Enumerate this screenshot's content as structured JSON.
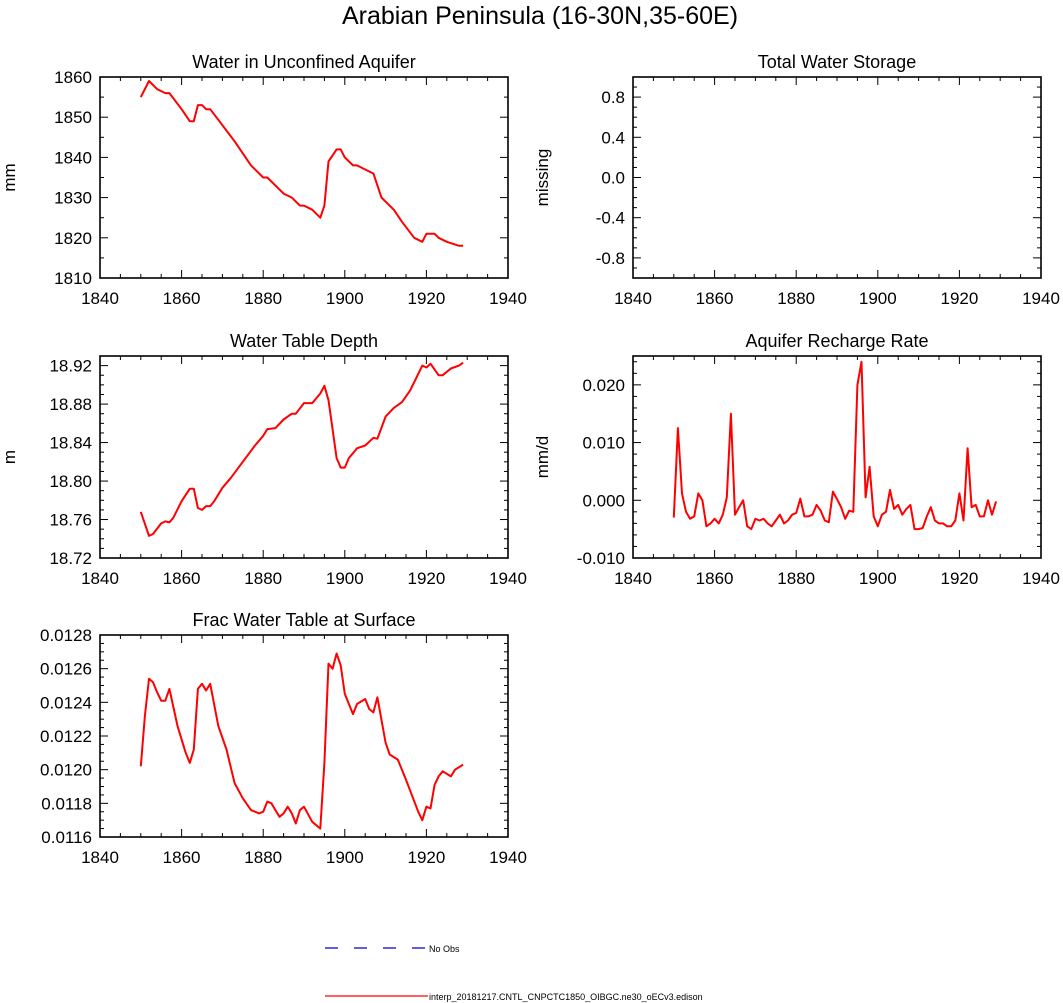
{
  "figure_title": "Arabian Peninsula (16-30N,35-60E)",
  "legend": {
    "entries": [
      {
        "label": "No Obs",
        "style": "dashed",
        "color": "#0000cc"
      },
      {
        "label": "interp_20181217.CNTL_CNPCTC1850_OIBGC.ne30_oECv3.edison",
        "style": "solid",
        "color": "#ff0000"
      }
    ]
  },
  "line_color": "#ff0000",
  "chart_data": [
    {
      "id": "water-unconfined-aquifer",
      "type": "line",
      "title": "Water in Unconfined Aquifer",
      "ylabel": "mm",
      "xlim": [
        1840,
        1940
      ],
      "ylim": [
        1810,
        1860
      ],
      "xticks": [
        1840,
        1860,
        1880,
        1900,
        1920,
        1940
      ],
      "yticks": [
        1810,
        1820,
        1830,
        1840,
        1850,
        1860
      ],
      "ytick_labels": [
        "1810",
        "1820",
        "1830",
        "1840",
        "1850",
        "1860"
      ],
      "ytick_minor": 2,
      "x": [
        1850,
        1852,
        1854,
        1856,
        1857,
        1860,
        1862,
        1863,
        1864,
        1865,
        1866,
        1867,
        1870,
        1873,
        1877,
        1880,
        1881,
        1885,
        1887,
        1889,
        1890,
        1892,
        1894,
        1895,
        1896,
        1898,
        1899,
        1900,
        1902,
        1903,
        1905,
        1907,
        1909,
        1912,
        1914,
        1917,
        1919,
        1920,
        1922,
        1923,
        1925,
        1928,
        1929
      ],
      "y": [
        1855,
        1859,
        1857,
        1856,
        1856,
        1852,
        1849,
        1849,
        1853,
        1853,
        1852,
        1852,
        1848,
        1844,
        1838,
        1835,
        1835,
        1831,
        1830,
        1828,
        1828,
        1827,
        1825,
        1828,
        1839,
        1842,
        1842,
        1840,
        1838,
        1838,
        1837,
        1836,
        1830,
        1827,
        1824,
        1820,
        1819,
        1821,
        1821,
        1820,
        1819,
        1818,
        1818
      ]
    },
    {
      "id": "total-water-storage",
      "type": "line",
      "title": "Total Water Storage",
      "ylabel": "missing",
      "xlim": [
        1840,
        1940
      ],
      "ylim": [
        -1,
        1
      ],
      "xticks": [
        1840,
        1860,
        1880,
        1900,
        1920,
        1940
      ],
      "yticks": [
        -0.8,
        -0.4,
        0.0,
        0.4,
        0.8
      ],
      "ytick_labels": [
        "-0.8",
        "-0.4",
        "0.0",
        "0.4",
        "0.8"
      ],
      "ytick_minor": 4,
      "x": [],
      "y": []
    },
    {
      "id": "water-table-depth",
      "type": "line",
      "title": "Water Table Depth",
      "ylabel": "m",
      "xlim": [
        1840,
        1940
      ],
      "ylim": [
        18.72,
        18.93
      ],
      "xticks": [
        1840,
        1860,
        1880,
        1900,
        1920,
        1940
      ],
      "yticks": [
        18.72,
        18.76,
        18.8,
        18.84,
        18.88,
        18.92
      ],
      "ytick_labels": [
        "18.72",
        "18.76",
        "18.80",
        "18.84",
        "18.88",
        "18.92"
      ],
      "ytick_minor": 4,
      "x": [
        1850,
        1852,
        1853,
        1855,
        1856,
        1857,
        1858,
        1860,
        1862,
        1863,
        1864,
        1865,
        1866,
        1867,
        1868,
        1870,
        1872,
        1875,
        1878,
        1880,
        1881,
        1883,
        1885,
        1887,
        1888,
        1890,
        1892,
        1894,
        1895,
        1896,
        1898,
        1899,
        1900,
        1901,
        1902,
        1903,
        1905,
        1907,
        1908,
        1910,
        1912,
        1914,
        1916,
        1919,
        1920,
        1921,
        1923,
        1924,
        1926,
        1928,
        1929
      ],
      "y": [
        18.768,
        18.743,
        18.745,
        18.756,
        18.758,
        18.757,
        18.762,
        18.779,
        18.792,
        18.792,
        18.772,
        18.77,
        18.774,
        18.774,
        18.779,
        18.793,
        18.803,
        18.82,
        18.837,
        18.847,
        18.854,
        18.855,
        18.864,
        18.87,
        18.87,
        18.881,
        18.881,
        18.891,
        18.899,
        18.884,
        18.824,
        18.814,
        18.814,
        18.824,
        18.829,
        18.834,
        18.837,
        18.845,
        18.844,
        18.867,
        18.876,
        18.882,
        18.894,
        18.92,
        18.918,
        18.922,
        18.91,
        18.91,
        18.917,
        18.92,
        18.923
      ]
    },
    {
      "id": "aquifer-recharge-rate",
      "type": "line",
      "title": "Aquifer Recharge Rate",
      "ylabel": "mm/d",
      "xlim": [
        1840,
        1940
      ],
      "ylim": [
        -0.01,
        0.025
      ],
      "xticks": [
        1840,
        1860,
        1880,
        1900,
        1920,
        1940
      ],
      "yticks": [
        -0.01,
        0.0,
        0.01,
        0.02
      ],
      "ytick_labels": [
        "-0.010",
        "0.000",
        "0.010",
        "0.020"
      ],
      "ytick_minor": 5,
      "x": [
        1850,
        1851,
        1852,
        1853,
        1854,
        1855,
        1856,
        1857,
        1858,
        1859,
        1860,
        1861,
        1862,
        1863,
        1864,
        1865,
        1866,
        1867,
        1868,
        1869,
        1870,
        1871,
        1872,
        1873,
        1874,
        1875,
        1876,
        1877,
        1878,
        1879,
        1880,
        1881,
        1882,
        1883,
        1884,
        1885,
        1886,
        1887,
        1888,
        1889,
        1890,
        1891,
        1892,
        1893,
        1894,
        1895,
        1896,
        1897,
        1898,
        1899,
        1900,
        1901,
        1902,
        1903,
        1904,
        1905,
        1906,
        1907,
        1908,
        1909,
        1910,
        1911,
        1912,
        1913,
        1914,
        1915,
        1916,
        1917,
        1918,
        1919,
        1920,
        1921,
        1922,
        1923,
        1924,
        1925,
        1926,
        1927,
        1928,
        1929
      ],
      "y": [
        -0.003,
        0.0125,
        0.0012,
        -0.002,
        -0.0032,
        -0.0028,
        0.0012,
        0.0,
        -0.0045,
        -0.004,
        -0.0032,
        -0.004,
        -0.0025,
        0.0005,
        0.015,
        -0.0025,
        -0.0012,
        0.0,
        -0.0045,
        -0.005,
        -0.0032,
        -0.0035,
        -0.0032,
        -0.004,
        -0.0045,
        -0.0035,
        -0.0025,
        -0.004,
        -0.0035,
        -0.0025,
        -0.0022,
        0.0003,
        -0.0028,
        -0.0028,
        -0.0025,
        -0.0008,
        -0.0018,
        -0.0035,
        -0.0038,
        0.0015,
        0.0002,
        -0.0012,
        -0.0032,
        -0.0018,
        -0.002,
        0.02,
        0.024,
        0.0005,
        0.0058,
        -0.0028,
        -0.0045,
        -0.0025,
        -0.002,
        0.0018,
        -0.0015,
        -0.0008,
        -0.0025,
        -0.0015,
        -0.0008,
        -0.005,
        -0.005,
        -0.0048,
        -0.0028,
        -0.0012,
        -0.0035,
        -0.004,
        -0.004,
        -0.0045,
        -0.0045,
        -0.0035,
        0.0012,
        -0.0035,
        0.009,
        -0.0012,
        -0.0008,
        -0.0028,
        -0.0028,
        0.0,
        -0.0025,
        -0.0002
      ]
    },
    {
      "id": "frac-water-table-surface",
      "type": "line",
      "title": "Frac Water Table at Surface",
      "ylabel": "",
      "xlim": [
        1840,
        1940
      ],
      "ylim": [
        0.0116,
        0.0128
      ],
      "xticks": [
        1840,
        1860,
        1880,
        1900,
        1920,
        1940
      ],
      "yticks": [
        0.0116,
        0.0118,
        0.012,
        0.0122,
        0.0124,
        0.0126,
        0.0128
      ],
      "ytick_labels": [
        "0.0116",
        "0.0118",
        "0.0120",
        "0.0122",
        "0.0124",
        "0.0126",
        "0.0128"
      ],
      "ytick_minor": 4,
      "x": [
        1850,
        1851,
        1852,
        1853,
        1854,
        1855,
        1856,
        1857,
        1859,
        1861,
        1862,
        1863,
        1864,
        1865,
        1866,
        1867,
        1869,
        1871,
        1873,
        1875,
        1877,
        1879,
        1880,
        1881,
        1882,
        1883,
        1884,
        1885,
        1886,
        1887,
        1888,
        1889,
        1890,
        1892,
        1894,
        1895,
        1896,
        1897,
        1898,
        1899,
        1900,
        1902,
        1903,
        1905,
        1906,
        1907,
        1908,
        1910,
        1911,
        1913,
        1915,
        1918,
        1919,
        1920,
        1921,
        1922,
        1923,
        1924,
        1926,
        1927,
        1929
      ],
      "y": [
        0.01202,
        0.01232,
        0.01254,
        0.01252,
        0.01246,
        0.01241,
        0.01241,
        0.01248,
        0.01226,
        0.0121,
        0.01204,
        0.01212,
        0.01248,
        0.01251,
        0.01247,
        0.01251,
        0.01226,
        0.01212,
        0.01192,
        0.01183,
        0.01176,
        0.01174,
        0.01175,
        0.01181,
        0.0118,
        0.01176,
        0.01172,
        0.01174,
        0.01178,
        0.01174,
        0.01168,
        0.01176,
        0.01178,
        0.01169,
        0.01165,
        0.01204,
        0.01263,
        0.0126,
        0.01269,
        0.01262,
        0.01245,
        0.01233,
        0.01239,
        0.01242,
        0.01236,
        0.01234,
        0.01243,
        0.01216,
        0.01209,
        0.01206,
        0.01194,
        0.01175,
        0.0117,
        0.01178,
        0.01177,
        0.01191,
        0.01196,
        0.01199,
        0.01196,
        0.012,
        0.01203
      ]
    }
  ]
}
